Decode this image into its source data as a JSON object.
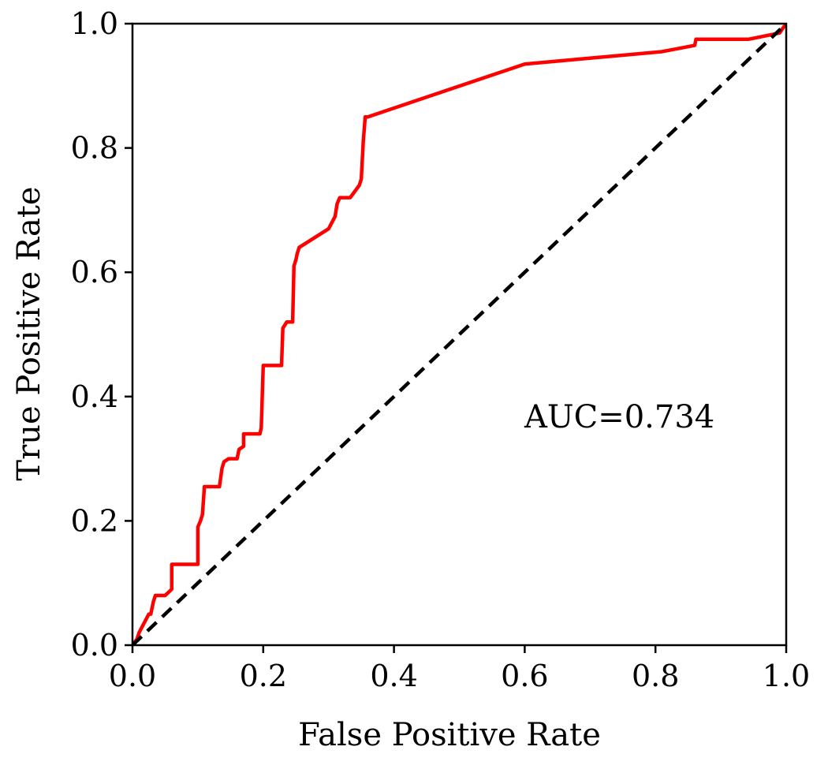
{
  "chart_data": {
    "type": "line",
    "title": "",
    "xlabel": "False Positive Rate",
    "ylabel": "True Positive Rate",
    "xlim": [
      0.0,
      1.0
    ],
    "ylim": [
      0.0,
      1.0
    ],
    "x_ticks": [
      0.0,
      0.2,
      0.4,
      0.6,
      0.8,
      1.0
    ],
    "y_ticks": [
      0.0,
      0.2,
      0.4,
      0.6,
      0.8,
      1.0
    ],
    "x_tick_labels": [
      "0.0",
      "0.2",
      "0.4",
      "0.6",
      "0.8",
      "1.0"
    ],
    "y_tick_labels": [
      "0.0",
      "0.2",
      "0.4",
      "0.6",
      "0.8",
      "1.0"
    ],
    "grid": false,
    "legend": "none",
    "annotation": "AUC=0.734",
    "series": [
      {
        "color": "#ff0000",
        "style": "solid",
        "x": [
          0.0,
          0.007,
          0.01,
          0.015,
          0.02,
          0.025,
          0.028,
          0.03,
          0.032,
          0.035,
          0.05,
          0.06,
          0.06,
          0.1,
          0.1,
          0.104,
          0.107,
          0.11,
          0.133,
          0.137,
          0.14,
          0.147,
          0.16,
          0.163,
          0.17,
          0.17,
          0.195,
          0.197,
          0.2,
          0.228,
          0.23,
          0.236,
          0.245,
          0.247,
          0.25,
          0.252,
          0.255,
          0.3,
          0.31,
          0.313,
          0.317,
          0.333,
          0.347,
          0.35,
          0.353,
          0.356,
          0.36,
          0.6,
          0.81,
          0.86,
          0.862,
          0.943,
          0.99,
          0.993,
          1.0
        ],
        "y": [
          0.0,
          0.01,
          0.02,
          0.03,
          0.04,
          0.05,
          0.05,
          0.06,
          0.07,
          0.08,
          0.08,
          0.09,
          0.13,
          0.13,
          0.19,
          0.2,
          0.21,
          0.255,
          0.255,
          0.285,
          0.295,
          0.3,
          0.3,
          0.315,
          0.32,
          0.34,
          0.34,
          0.35,
          0.45,
          0.45,
          0.51,
          0.52,
          0.52,
          0.61,
          0.62,
          0.63,
          0.64,
          0.67,
          0.69,
          0.71,
          0.72,
          0.72,
          0.74,
          0.75,
          0.81,
          0.85,
          0.85,
          0.935,
          0.955,
          0.965,
          0.975,
          0.975,
          0.985,
          0.99,
          1.0
        ]
      },
      {
        "color": "#000000",
        "style": "dashed",
        "x": [
          0.0,
          1.0
        ],
        "y": [
          0.0,
          1.0
        ]
      }
    ]
  }
}
